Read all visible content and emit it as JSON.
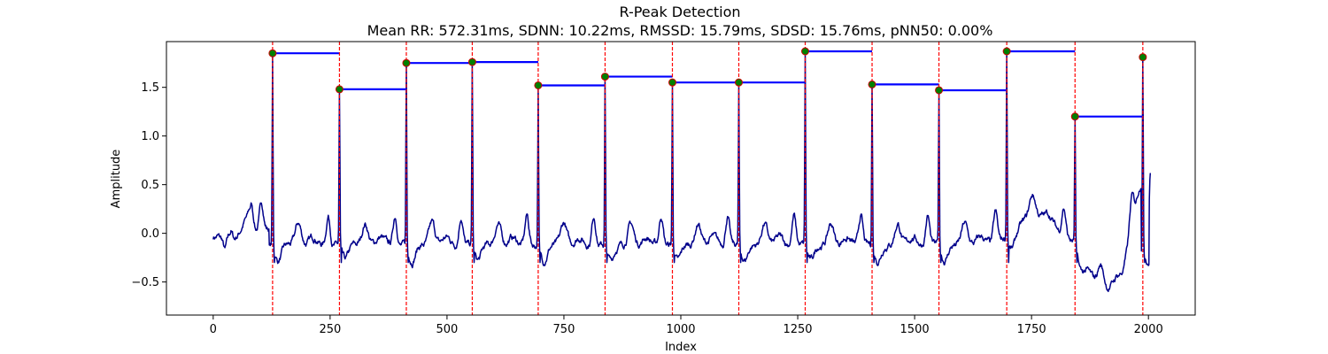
{
  "chart_data": {
    "type": "line",
    "title": "R-Peak Detection",
    "subtitle": "Mean RR: 572.31ms, SDNN: 10.22ms, RMSSD: 15.79ms, SDSD: 15.76ms, pNN50: 0.00%",
    "xlabel": "Index",
    "ylabel": "Amplitude",
    "xlim": [
      -100,
      2100
    ],
    "ylim": [
      -0.84,
      1.97
    ],
    "xticks": [
      0,
      250,
      500,
      750,
      1000,
      1250,
      1500,
      1750,
      2000
    ],
    "yticks": [
      -0.5,
      0.0,
      0.5,
      1.0,
      1.5
    ],
    "ytick_labels": [
      "−0.5",
      "0.0",
      "0.5",
      "1.0",
      "1.5"
    ],
    "grid": false,
    "colors": {
      "signal": "#00008b",
      "peak_line": "#ff0000",
      "peak_marker_fill": "#008000",
      "peak_marker_edge": "#cc0000",
      "rr_interval": "#0000ff"
    },
    "peaks": [
      {
        "x": 127,
        "y": 1.85
      },
      {
        "x": 270,
        "y": 1.48
      },
      {
        "x": 413,
        "y": 1.75
      },
      {
        "x": 554,
        "y": 1.76
      },
      {
        "x": 695,
        "y": 1.52
      },
      {
        "x": 838,
        "y": 1.61
      },
      {
        "x": 982,
        "y": 1.55
      },
      {
        "x": 1124,
        "y": 1.55
      },
      {
        "x": 1266,
        "y": 1.87
      },
      {
        "x": 1409,
        "y": 1.53
      },
      {
        "x": 1552,
        "y": 1.47
      },
      {
        "x": 1697,
        "y": 1.87
      },
      {
        "x": 1843,
        "y": 1.2
      },
      {
        "x": 1988,
        "y": 1.81
      }
    ],
    "signal_profile": [
      {
        "x": 0,
        "y": -0.04
      },
      {
        "x": 10,
        "y": -0.03
      },
      {
        "x": 18,
        "y": -0.06
      },
      {
        "x": 25,
        "y": -0.18
      },
      {
        "x": 32,
        "y": -0.05
      },
      {
        "x": 38,
        "y": 0.02
      },
      {
        "x": 45,
        "y": -0.06
      },
      {
        "x": 55,
        "y": -0.01
      },
      {
        "x": 65,
        "y": 0.05
      },
      {
        "x": 72,
        "y": 0.08
      },
      {
        "x": 82,
        "y": 0.26
      },
      {
        "x": 90,
        "y": 0.05
      },
      {
        "x": 100,
        "y": 0.0
      },
      {
        "x": 112,
        "y": 0.05
      },
      {
        "x": 480,
        "y": 0.2
      },
      {
        "x": 905,
        "y": 0.22
      },
      {
        "x": 1820,
        "y": 0.25
      }
    ]
  }
}
